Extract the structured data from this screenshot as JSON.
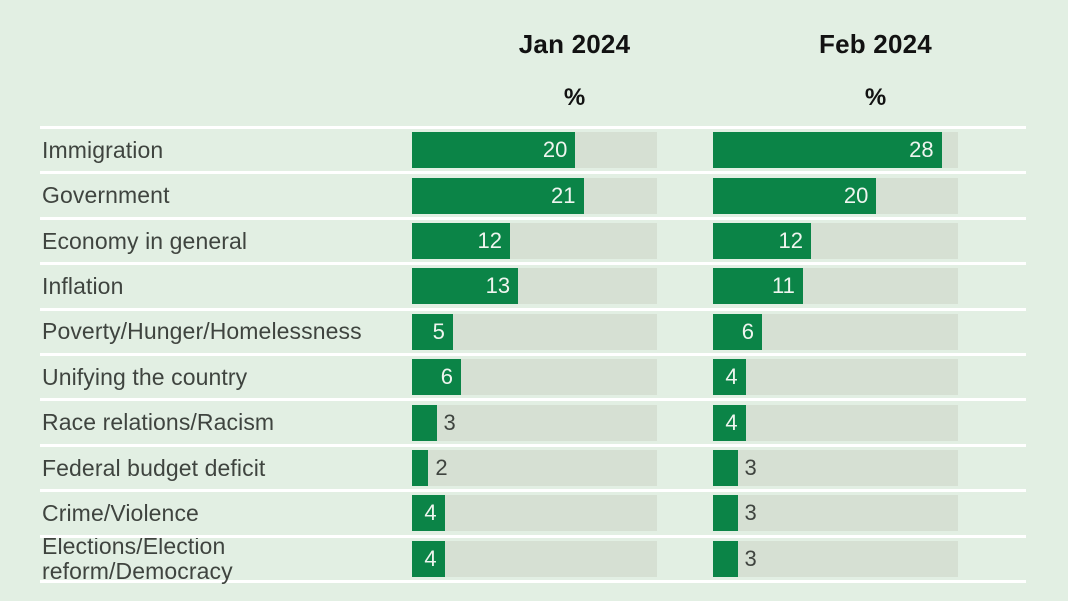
{
  "header": {
    "columns": [
      {
        "label": "Jan 2024",
        "unit": "%"
      },
      {
        "label": "Feb 2024",
        "unit": "%"
      }
    ]
  },
  "chart_data": {
    "type": "bar",
    "orientation": "horizontal",
    "title": "",
    "categories": [
      "Immigration",
      "Government",
      "Economy in general",
      "Inflation",
      "Poverty/Hunger/Homelessness",
      "Unifying the country",
      "Race relations/Racism",
      "Federal budget deficit",
      "Crime/Violence",
      "Elections/Election\nreform/Democracy"
    ],
    "series": [
      {
        "name": "Jan 2024",
        "values": [
          20,
          21,
          12,
          13,
          5,
          6,
          3,
          2,
          4,
          4
        ]
      },
      {
        "name": "Feb 2024",
        "values": [
          28,
          20,
          12,
          11,
          6,
          4,
          4,
          3,
          3,
          3
        ]
      }
    ],
    "value_unit": "%",
    "xlim": [
      0,
      30
    ],
    "grid": false,
    "legend_position": "top-column-headers",
    "inside_label_min_value": 4,
    "colors": {
      "bar": "#0b8447",
      "track": "#d6e0d3",
      "background": "#e2efe3",
      "separator": "#ffffff",
      "header_text": "#121212",
      "label_text": "#3f443f",
      "value_inside": "#eff5ef",
      "value_outside": "#3f443f"
    }
  }
}
